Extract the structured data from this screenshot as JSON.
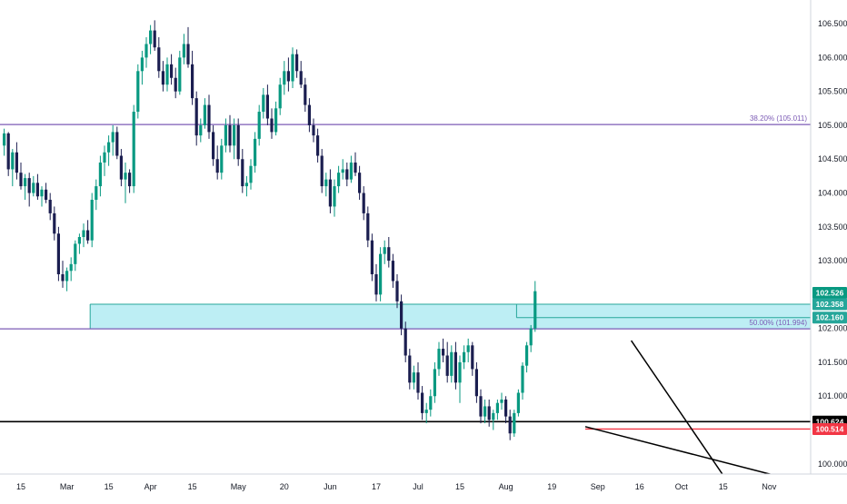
{
  "chart_data": {
    "type": "candlestick",
    "grid": false,
    "colors": {
      "up": "#089981",
      "down": "#1b1e50",
      "fib_line": "#7c5bb5",
      "zone_fill": "#b2ebf2",
      "zone_border": "#26a69a",
      "support_line": "#000000",
      "red_line": "#f23645",
      "trend_line": "#000000",
      "axis_border": "#d1d4dc",
      "badge_green": "#089981",
      "badge_teal": "#26a69a",
      "badge_black": "#000000",
      "badge_red": "#f23645"
    },
    "y_axis": {
      "side": "right",
      "ylim": [
        99.85,
        106.85
      ],
      "ticks": [
        "106.500",
        "106.000",
        "105.500",
        "105.000",
        "104.500",
        "104.000",
        "103.500",
        "103.000",
        "102.500",
        "102.000",
        "101.500",
        "101.000",
        "100.500",
        "100.000"
      ],
      "tick_values": [
        106.5,
        106.0,
        105.5,
        105.0,
        104.5,
        104.0,
        103.5,
        103.0,
        102.5,
        102.0,
        101.5,
        101.0,
        100.5,
        100.0
      ]
    },
    "x_axis": {
      "ticks": [
        "15",
        "Mar",
        "15",
        "Apr",
        "15",
        "May",
        "20",
        "Jun",
        "17",
        "Jul",
        "15",
        "Aug",
        "19",
        "Sep",
        "16",
        "Oct",
        "15",
        "Nov"
      ],
      "tick_index": [
        4,
        15,
        25,
        35,
        45,
        56,
        67,
        78,
        89,
        99,
        109,
        120,
        131,
        142,
        152,
        162,
        172,
        183
      ]
    },
    "levels": [
      {
        "name": "fib-38",
        "value": 105.011,
        "label": "38.20% (105.011)"
      },
      {
        "name": "fib-50",
        "value": 101.994,
        "label": "50.00% (101.994)"
      },
      {
        "name": "support",
        "value": 100.624
      },
      {
        "name": "red-level",
        "value": 100.514
      }
    ],
    "zone": {
      "from_index": 21,
      "top": 102.358,
      "bottom": 101.994
    },
    "aug_box": {
      "from_index": 123,
      "top": 102.358,
      "bottom": 102.16
    },
    "price_badges": [
      {
        "label": "102.526",
        "value": 102.526,
        "color": "badge_green"
      },
      {
        "label": "102.358",
        "value": 102.358,
        "color": "badge_teal"
      },
      {
        "label": "102.160",
        "value": 102.16,
        "color": "badge_teal"
      },
      {
        "label": "100.624",
        "value": 100.624,
        "color": "badge_black"
      },
      {
        "label": "100.514",
        "value": 100.514,
        "color": "badge_red"
      }
    ],
    "trendlines": [
      {
        "name": "upper-trendline",
        "from": {
          "i": 150,
          "v": 101.82
        },
        "to": {
          "i": 174,
          "v": 99.65
        }
      },
      {
        "name": "lower-trendline",
        "from": {
          "i": 139,
          "v": 100.55
        },
        "to": {
          "i": 185,
          "v": 99.82
        }
      }
    ],
    "candles": [
      [
        104.7,
        104.95,
        104.55,
        104.88
      ],
      [
        104.88,
        104.9,
        104.25,
        104.35
      ],
      [
        104.35,
        104.65,
        104.1,
        104.6
      ],
      [
        104.6,
        104.75,
        104.2,
        104.3
      ],
      [
        104.3,
        104.45,
        104.05,
        104.1
      ],
      [
        104.1,
        104.28,
        103.9,
        104.22
      ],
      [
        104.22,
        104.3,
        103.8,
        104.0
      ],
      [
        104.0,
        104.25,
        103.95,
        104.15
      ],
      [
        104.15,
        104.28,
        103.9,
        103.95
      ],
      [
        103.95,
        104.1,
        103.8,
        104.05
      ],
      [
        104.05,
        104.15,
        103.85,
        103.9
      ],
      [
        103.9,
        104.0,
        103.6,
        103.7
      ],
      [
        103.7,
        103.8,
        103.3,
        103.4
      ],
      [
        103.4,
        103.5,
        102.7,
        102.8
      ],
      [
        102.8,
        103.0,
        102.6,
        102.7
      ],
      [
        102.7,
        102.9,
        102.55,
        102.85
      ],
      [
        102.85,
        103.05,
        102.7,
        102.95
      ],
      [
        102.95,
        103.3,
        102.85,
        103.25
      ],
      [
        103.25,
        103.4,
        103.1,
        103.35
      ],
      [
        103.35,
        103.55,
        103.2,
        103.45
      ],
      [
        103.45,
        103.6,
        103.25,
        103.3
      ],
      [
        103.3,
        104.0,
        103.2,
        103.9
      ],
      [
        103.9,
        104.2,
        103.75,
        104.1
      ],
      [
        104.1,
        104.55,
        103.95,
        104.45
      ],
      [
        104.45,
        104.7,
        104.25,
        104.6
      ],
      [
        104.6,
        104.85,
        104.4,
        104.75
      ],
      [
        104.75,
        105.0,
        104.55,
        104.9
      ],
      [
        104.9,
        104.98,
        104.5,
        104.55
      ],
      [
        104.55,
        104.65,
        104.1,
        104.2
      ],
      [
        104.2,
        104.45,
        103.85,
        104.3
      ],
      [
        104.3,
        104.35,
        104.0,
        104.1
      ],
      [
        104.1,
        105.3,
        104.0,
        105.2
      ],
      [
        105.2,
        105.9,
        105.1,
        105.8
      ],
      [
        105.8,
        106.1,
        105.6,
        106.0
      ],
      [
        106.0,
        106.3,
        105.85,
        106.2
      ],
      [
        106.2,
        106.48,
        106.05,
        106.4
      ],
      [
        106.4,
        106.55,
        106.1,
        106.15
      ],
      [
        106.15,
        106.3,
        105.7,
        105.8
      ],
      [
        105.8,
        105.95,
        105.5,
        105.6
      ],
      [
        105.6,
        106.0,
        105.5,
        105.9
      ],
      [
        105.9,
        106.05,
        105.6,
        105.7
      ],
      [
        105.7,
        105.85,
        105.4,
        105.5
      ],
      [
        105.5,
        106.1,
        105.45,
        106.0
      ],
      [
        106.0,
        106.35,
        105.9,
        106.2
      ],
      [
        106.2,
        106.45,
        105.85,
        105.9
      ],
      [
        105.9,
        106.1,
        105.3,
        105.4
      ],
      [
        105.4,
        105.5,
        104.7,
        104.85
      ],
      [
        104.85,
        105.1,
        104.75,
        105.0
      ],
      [
        105.0,
        105.4,
        104.95,
        105.3
      ],
      [
        105.3,
        105.45,
        104.8,
        104.9
      ],
      [
        104.9,
        105.0,
        104.4,
        104.5
      ],
      [
        104.5,
        104.7,
        104.2,
        104.3
      ],
      [
        104.3,
        104.8,
        104.2,
        104.7
      ],
      [
        104.7,
        105.1,
        104.6,
        105.0
      ],
      [
        105.0,
        105.15,
        104.6,
        104.7
      ],
      [
        104.7,
        105.1,
        104.5,
        105.0
      ],
      [
        105.0,
        105.1,
        104.4,
        104.5
      ],
      [
        104.5,
        104.65,
        104.0,
        104.1
      ],
      [
        104.1,
        104.25,
        103.95,
        104.15
      ],
      [
        104.15,
        104.5,
        104.05,
        104.4
      ],
      [
        104.4,
        104.9,
        104.3,
        104.8
      ],
      [
        104.8,
        105.3,
        104.7,
        105.2
      ],
      [
        105.2,
        105.55,
        105.1,
        105.45
      ],
      [
        105.45,
        105.6,
        105.0,
        105.1
      ],
      [
        105.1,
        105.25,
        104.8,
        104.9
      ],
      [
        104.9,
        105.35,
        104.85,
        105.25
      ],
      [
        105.25,
        105.7,
        105.15,
        105.6
      ],
      [
        105.6,
        105.95,
        105.45,
        105.8
      ],
      [
        105.8,
        106.0,
        105.5,
        105.65
      ],
      [
        105.65,
        106.15,
        105.55,
        106.05
      ],
      [
        106.05,
        106.12,
        105.7,
        105.8
      ],
      [
        105.8,
        105.95,
        105.55,
        105.6
      ],
      [
        105.6,
        105.7,
        105.2,
        105.3
      ],
      [
        105.3,
        105.4,
        104.9,
        105.0
      ],
      [
        105.0,
        105.1,
        104.75,
        104.85
      ],
      [
        104.85,
        104.95,
        104.45,
        104.55
      ],
      [
        104.55,
        104.65,
        104.0,
        104.1
      ],
      [
        104.1,
        104.3,
        103.95,
        104.2
      ],
      [
        104.2,
        104.35,
        103.7,
        103.8
      ],
      [
        103.8,
        104.2,
        103.65,
        104.1
      ],
      [
        104.1,
        104.4,
        104.0,
        104.3
      ],
      [
        104.3,
        104.5,
        104.2,
        104.35
      ],
      [
        104.35,
        104.45,
        104.1,
        104.2
      ],
      [
        104.2,
        104.55,
        104.15,
        104.45
      ],
      [
        104.45,
        104.6,
        104.25,
        104.3
      ],
      [
        104.3,
        104.4,
        103.9,
        104.0
      ],
      [
        104.0,
        104.1,
        103.6,
        103.7
      ],
      [
        103.7,
        103.8,
        103.2,
        103.3
      ],
      [
        103.3,
        103.4,
        102.7,
        102.8
      ],
      [
        102.8,
        102.95,
        102.4,
        102.5
      ],
      [
        102.5,
        103.2,
        102.4,
        103.1
      ],
      [
        103.1,
        103.3,
        102.95,
        103.2
      ],
      [
        103.2,
        103.35,
        102.9,
        103.0
      ],
      [
        103.0,
        103.1,
        102.6,
        102.7
      ],
      [
        102.7,
        102.8,
        102.3,
        102.4
      ],
      [
        102.4,
        102.5,
        101.9,
        102.0
      ],
      [
        102.0,
        102.1,
        101.5,
        101.6
      ],
      [
        101.6,
        101.7,
        101.1,
        101.2
      ],
      [
        101.2,
        101.45,
        101.1,
        101.35
      ],
      [
        101.35,
        101.5,
        100.95,
        101.05
      ],
      [
        101.05,
        101.15,
        100.65,
        100.75
      ],
      [
        100.75,
        100.9,
        100.6,
        100.8
      ],
      [
        100.8,
        101.1,
        100.7,
        101.0
      ],
      [
        101.0,
        101.5,
        100.9,
        101.4
      ],
      [
        101.4,
        101.8,
        101.3,
        101.7
      ],
      [
        101.7,
        101.85,
        101.5,
        101.6
      ],
      [
        101.6,
        101.8,
        101.2,
        101.3
      ],
      [
        101.3,
        101.75,
        101.2,
        101.65
      ],
      [
        101.65,
        101.8,
        101.1,
        101.2
      ],
      [
        101.2,
        101.6,
        100.9,
        101.5
      ],
      [
        101.5,
        101.75,
        101.4,
        101.65
      ],
      [
        101.65,
        101.85,
        101.5,
        101.75
      ],
      [
        101.75,
        101.8,
        101.3,
        101.4
      ],
      [
        101.4,
        101.5,
        100.9,
        101.0
      ],
      [
        101.0,
        101.1,
        100.6,
        100.7
      ],
      [
        100.7,
        100.95,
        100.6,
        100.85
      ],
      [
        100.85,
        100.95,
        100.55,
        100.65
      ],
      [
        100.65,
        100.8,
        100.5,
        100.75
      ],
      [
        100.75,
        100.95,
        100.65,
        100.9
      ],
      [
        100.9,
        101.05,
        100.8,
        100.95
      ],
      [
        100.95,
        101.0,
        100.6,
        100.7
      ],
      [
        100.7,
        100.8,
        100.35,
        100.45
      ],
      [
        100.45,
        100.8,
        100.4,
        100.75
      ],
      [
        100.75,
        101.1,
        100.7,
        101.05
      ],
      [
        101.05,
        101.5,
        100.95,
        101.45
      ],
      [
        101.45,
        101.8,
        101.35,
        101.75
      ],
      [
        101.75,
        102.05,
        101.65,
        102.0
      ],
      [
        102.0,
        102.7,
        101.95,
        102.55
      ]
    ]
  }
}
